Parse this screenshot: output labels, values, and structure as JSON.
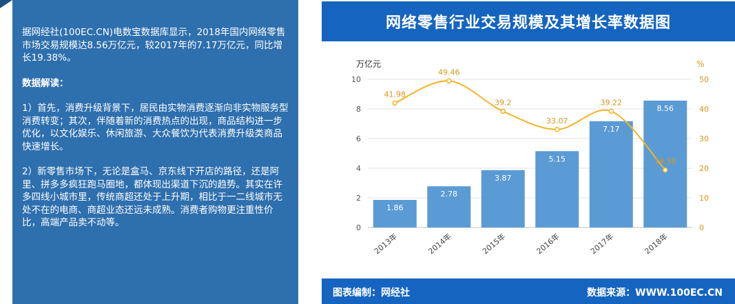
{
  "text_panel": {
    "paragraph_1": "据网经社(100EC.CN)电数宝数据库显示，2018年国内网络零售市场交易规模达8.56万亿元，较2017年的7.17万亿元，同比增长19.38%。",
    "heading": "数据解读：",
    "paragraph_2": "1）首先，消费升级背景下，居民由实物消费逐渐向非实物服务型消费转变；其次，伴随着新的消费热点的出现，商品结构进一步优化，以文化娱乐、休闲旅游、大众餐饮为代表消费升级类商品快速增长。",
    "paragraph_3": "2）新零售市场下，无论是盒马、京东线下开店的路径，还是阿里、拼多多疯狂跑马圈地，都体现出渠道下沉的趋势。其实在许多四线小城市里，传统商超还处于上升期，相比于一二线城市无处不在的电商、商超业态还远未成熟。消费者购物更注重性价比，高端产品卖不动等。"
  },
  "footer": {
    "credit_left": "图表编制：网经社",
    "credit_right": "数据来源：WWW.100EC.CN"
  },
  "colors": {
    "bar": "#5b9bd5",
    "line": "#f5b324",
    "banner": "#1565c0",
    "panel": "#2e6fae"
  },
  "chart_data": {
    "type": "bar+line",
    "title": "网络零售行业交易规模及其增长率数据图",
    "categories": [
      "2013年",
      "2014年",
      "2015年",
      "2016年",
      "2017年",
      "2018年"
    ],
    "series": [
      {
        "name": "",
        "type": "bar",
        "axis": "left",
        "values": [
          1.86,
          2.78,
          3.87,
          5.15,
          7.17,
          8.56
        ],
        "labels": [
          "1.86",
          "2.78",
          "3.87",
          "5.15",
          "7.17",
          "8.56"
        ]
      },
      {
        "name": "",
        "type": "line",
        "axis": "right",
        "values": [
          41.98,
          49.46,
          39.2,
          33.07,
          39.22,
          19.38
        ],
        "labels": [
          "41.98",
          "49.46",
          "39.2",
          "33.07",
          "39.22",
          "19.38"
        ]
      }
    ],
    "ylabel_left": "万亿元",
    "ylabel_right": "%",
    "ylim_left": [
      0,
      10
    ],
    "ylim_right": [
      0,
      50
    ],
    "yticks_left": [
      "0",
      "2",
      "4",
      "6",
      "8",
      "10"
    ],
    "yticks_right": [
      "0",
      "10",
      "20",
      "30",
      "40",
      "50"
    ],
    "grid": true,
    "legend": "none"
  }
}
